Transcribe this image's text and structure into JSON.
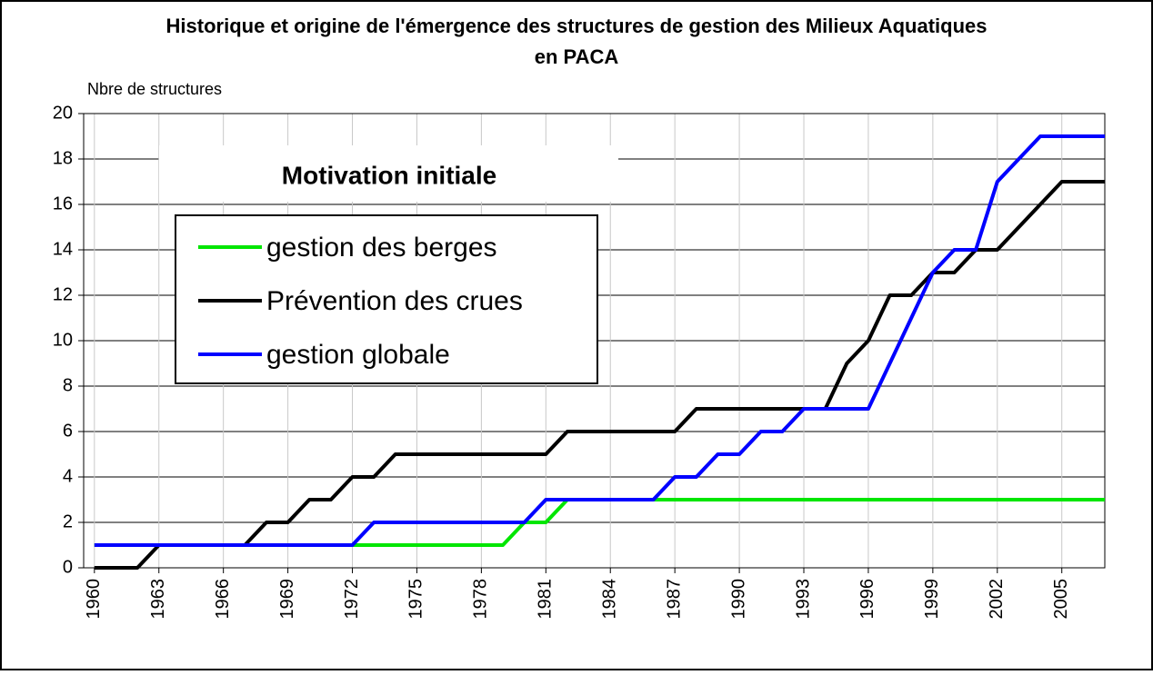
{
  "chart_data": {
    "type": "line",
    "title": [
      "Historique et origine de l'émergence des structures de gestion des Milieux Aquatiques",
      "en PACA"
    ],
    "y_label": "Nbre de structures",
    "legend_title": "Motivation initiale",
    "x": [
      1960,
      1961,
      1962,
      1963,
      1964,
      1965,
      1966,
      1967,
      1968,
      1969,
      1970,
      1971,
      1972,
      1973,
      1974,
      1975,
      1976,
      1977,
      1978,
      1979,
      1980,
      1981,
      1982,
      1983,
      1984,
      1985,
      1986,
      1987,
      1988,
      1989,
      1990,
      1991,
      1992,
      1993,
      1994,
      1995,
      1996,
      1997,
      1998,
      1999,
      2000,
      2001,
      2002,
      2003,
      2004,
      2005,
      2006,
      2007
    ],
    "series": [
      {
        "name": "gestion des berges",
        "color": "#00e600",
        "values": [
          1,
          1,
          1,
          1,
          1,
          1,
          1,
          1,
          1,
          1,
          1,
          1,
          1,
          1,
          1,
          1,
          1,
          1,
          1,
          1,
          2,
          2,
          3,
          3,
          3,
          3,
          3,
          3,
          3,
          3,
          3,
          3,
          3,
          3,
          3,
          3,
          3,
          3,
          3,
          3,
          3,
          3,
          3,
          3,
          3,
          3,
          3,
          3
        ]
      },
      {
        "name": "Prévention des crues",
        "color": "#000000",
        "values": [
          0,
          0,
          0,
          1,
          1,
          1,
          1,
          1,
          2,
          2,
          3,
          3,
          4,
          4,
          5,
          5,
          5,
          5,
          5,
          5,
          5,
          5,
          6,
          6,
          6,
          6,
          6,
          6,
          7,
          7,
          7,
          7,
          7,
          7,
          7,
          9,
          10,
          12,
          12,
          13,
          13,
          14,
          14,
          15,
          16,
          17,
          17,
          17
        ]
      },
      {
        "name": "gestion globale",
        "color": "#0000ff",
        "values": [
          1,
          1,
          1,
          1,
          1,
          1,
          1,
          1,
          1,
          1,
          1,
          1,
          1,
          2,
          2,
          2,
          2,
          2,
          2,
          2,
          2,
          3,
          3,
          3,
          3,
          3,
          3,
          4,
          4,
          5,
          5,
          6,
          6,
          7,
          7,
          7,
          7,
          9,
          11,
          13,
          14,
          14,
          17,
          18,
          19,
          19,
          19,
          19
        ]
      }
    ],
    "xlim": [
      1959.5,
      2007
    ],
    "xticks": [
      1960,
      1963,
      1966,
      1969,
      1972,
      1975,
      1978,
      1981,
      1984,
      1987,
      1990,
      1993,
      1996,
      1999,
      2002,
      2005
    ],
    "ylim": [
      0,
      20
    ],
    "yticks": [
      0,
      2,
      4,
      6,
      8,
      10,
      12,
      14,
      16,
      18,
      20
    ],
    "grid": true
  }
}
